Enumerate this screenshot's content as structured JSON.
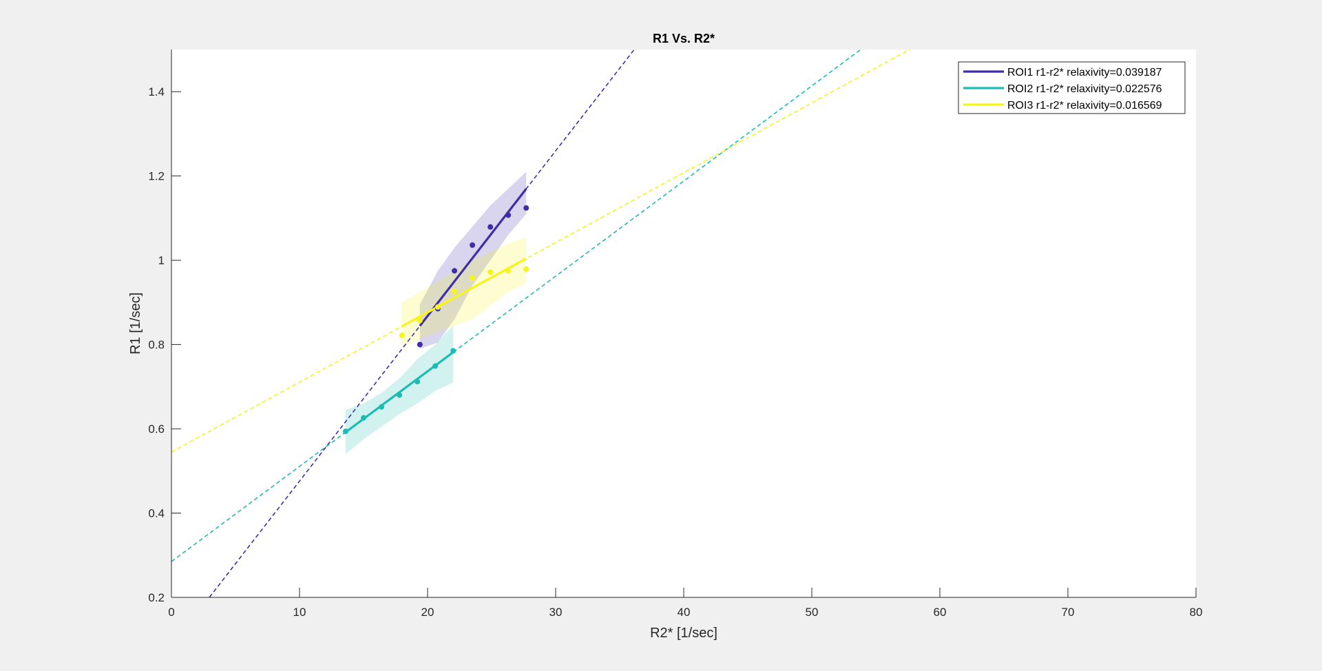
{
  "chart_data": {
    "type": "scatter",
    "title": "R1 Vs. R2*",
    "xlabel": "R2* [1/sec]",
    "ylabel": "R1 [1/sec]",
    "xlim": [
      0,
      80
    ],
    "ylim": [
      0.2,
      1.5
    ],
    "xticks": [
      0,
      10,
      20,
      30,
      40,
      50,
      60,
      70,
      80
    ],
    "yticks": [
      0.2,
      0.4,
      0.6,
      0.8,
      1,
      1.2,
      1.4
    ],
    "xtick_labels": [
      "0",
      "10",
      "20",
      "30",
      "40",
      "50",
      "60",
      "70",
      "80"
    ],
    "ytick_labels": [
      "0.2",
      "0.4",
      "0.6",
      "0.8",
      "1",
      "1.2",
      "1.4"
    ],
    "grid": false,
    "legend_position": "top-right",
    "series": [
      {
        "name": "ROI1 r1-r2* relaxivity=0.039187",
        "color": "#3f2daa",
        "points": [
          [
            19.4,
            0.8
          ],
          [
            20.8,
            0.885
          ],
          [
            22.1,
            0.975
          ],
          [
            23.5,
            1.036
          ],
          [
            24.9,
            1.079
          ],
          [
            26.3,
            1.107
          ],
          [
            27.7,
            1.124
          ]
        ],
        "fit_range": [
          19.4,
          27.7
        ],
        "band": {
          "x": [
            19.4,
            20.8,
            22.1,
            23.5,
            24.9,
            26.3,
            27.7
          ],
          "upper": [
            0.895,
            0.975,
            1.03,
            1.08,
            1.13,
            1.17,
            1.21
          ],
          "lower": [
            0.79,
            0.805,
            0.86,
            0.94,
            1.0,
            1.06,
            1.11
          ]
        },
        "line_x_range": [
          0,
          36.2
        ],
        "slope": 0.039187,
        "intercept": 0.084
      },
      {
        "name": "ROI2 r1-r2* relaxivity=0.022576",
        "color": "#1cbcb4",
        "points": [
          [
            13.6,
            0.594
          ],
          [
            15.0,
            0.626
          ],
          [
            16.4,
            0.652
          ],
          [
            17.8,
            0.68
          ],
          [
            19.2,
            0.712
          ],
          [
            20.6,
            0.749
          ],
          [
            22.0,
            0.785
          ]
        ],
        "fit_range": [
          13.6,
          22.0
        ],
        "band": {
          "x": [
            13.6,
            15.0,
            16.4,
            17.8,
            19.2,
            20.6,
            22.0
          ],
          "upper": [
            0.645,
            0.66,
            0.685,
            0.72,
            0.765,
            0.8,
            0.845
          ],
          "lower": [
            0.54,
            0.575,
            0.605,
            0.635,
            0.66,
            0.69,
            0.71
          ]
        },
        "line_x_range": [
          0,
          54.0
        ],
        "slope": 0.022576,
        "intercept": 0.285
      },
      {
        "name": "ROI3 r1-r2* relaxivity=0.016569",
        "color": "#f5f51a",
        "points": [
          [
            18.0,
            0.822
          ],
          [
            19.4,
            0.857
          ],
          [
            20.8,
            0.889
          ],
          [
            22.1,
            0.926
          ],
          [
            23.5,
            0.958
          ],
          [
            24.9,
            0.972
          ],
          [
            26.3,
            0.975
          ],
          [
            27.7,
            0.979
          ]
        ],
        "fit_range": [
          18.0,
          27.7
        ],
        "band": {
          "x": [
            18.0,
            20.8,
            23.5,
            26.3,
            27.7
          ],
          "upper": [
            0.9,
            0.95,
            1.0,
            1.04,
            1.055
          ],
          "lower": [
            0.795,
            0.83,
            0.86,
            0.925,
            0.945
          ]
        },
        "line_x_range": [
          0,
          57.8
        ],
        "slope": 0.016569,
        "intercept": 0.545
      }
    ]
  }
}
